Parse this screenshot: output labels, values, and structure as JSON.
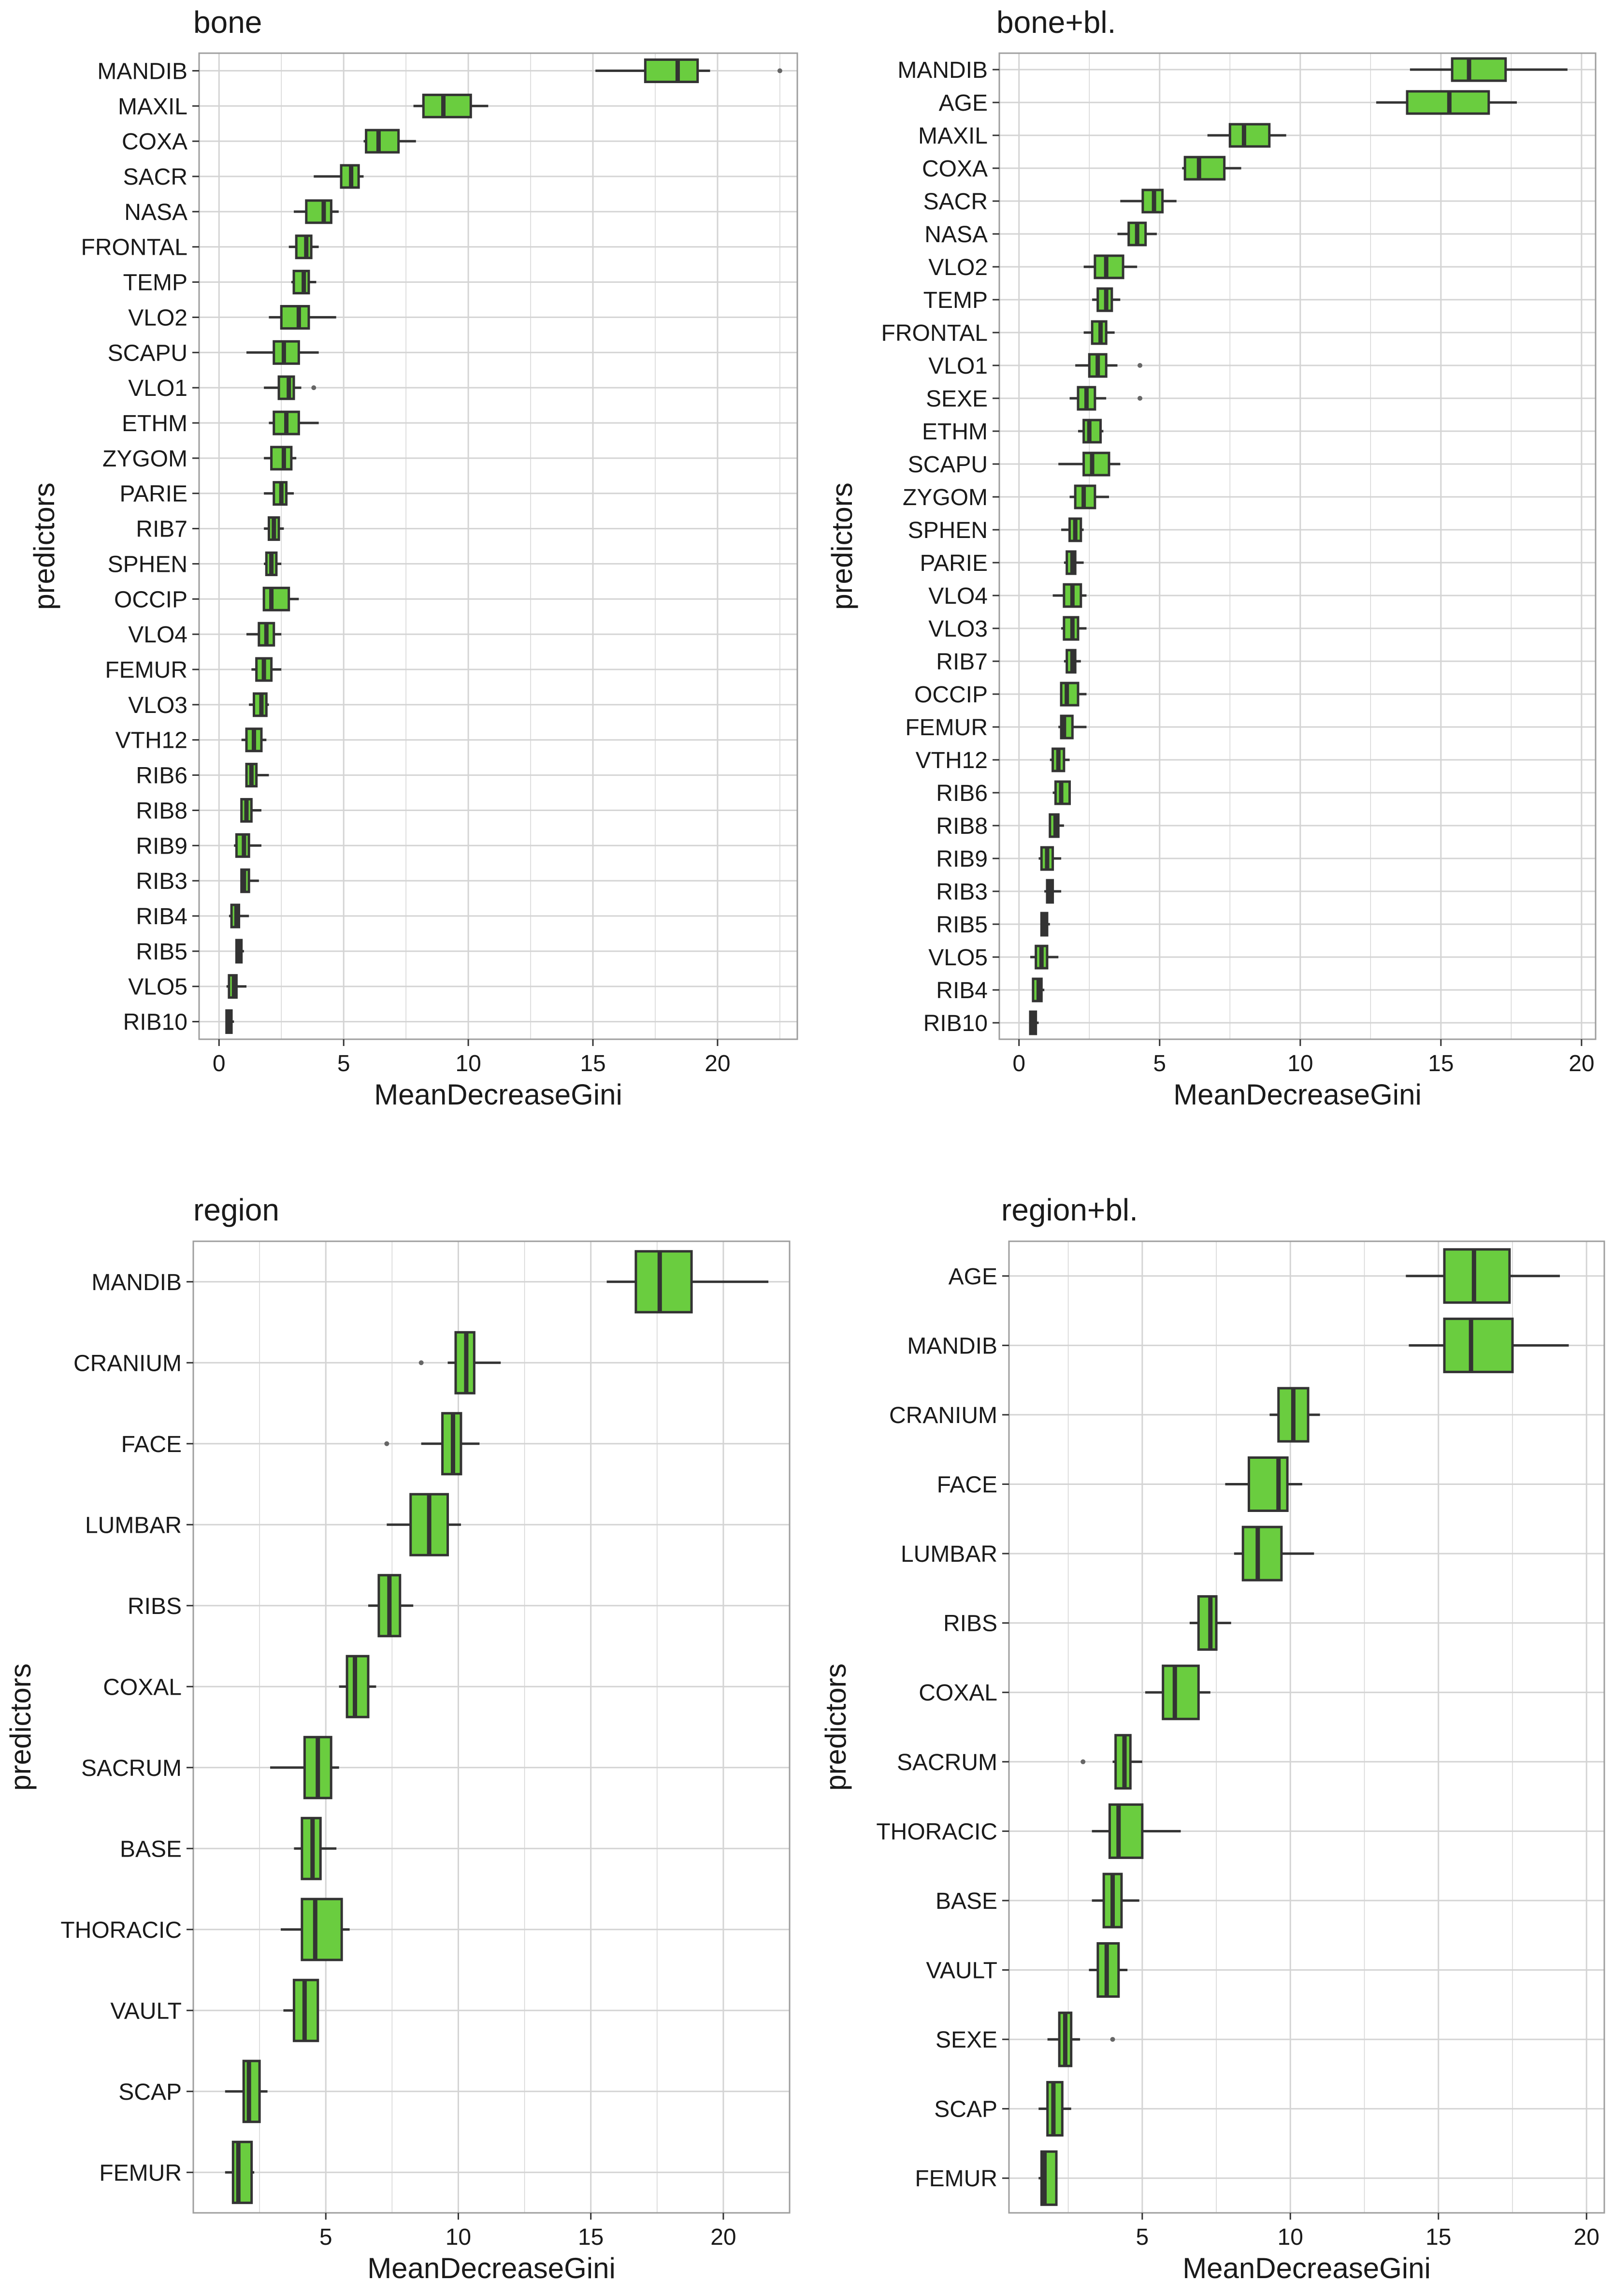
{
  "figure": {
    "colors": {
      "box_fill": "#6acd3f",
      "box_stroke": "#333333",
      "grid": "#d4d4d4",
      "panel_border": "#9e9e9e",
      "text": "#1a1a1a"
    }
  },
  "chart_data": [
    {
      "type": "boxplot",
      "title": "bone",
      "xlabel": "MeanDecreaseGini",
      "ylabel": "predictors",
      "xlim": [
        -0.8,
        23.2
      ],
      "xticks": [
        0,
        5,
        10,
        15,
        20
      ],
      "grid": true,
      "categories": [
        "MANDIB",
        "MAXIL",
        "COXA",
        "SACR",
        "NASA",
        "FRONTAL",
        "TEMP",
        "VLO2",
        "SCAPU",
        "VLO1",
        "ETHM",
        "ZYGOM",
        "PARIE",
        "RIB7",
        "SPHEN",
        "OCCIP",
        "VLO4",
        "FEMUR",
        "VLO3",
        "VTH12",
        "RIB6",
        "RIB8",
        "RIB9",
        "RIB3",
        "RIB4",
        "RIB5",
        "VLO5",
        "RIB10"
      ],
      "boxes": [
        {
          "min": 15.1,
          "q1": 17.1,
          "median": 18.4,
          "q3": 19.2,
          "max": 19.7,
          "outliers": [
            22.5
          ]
        },
        {
          "min": 7.8,
          "q1": 8.2,
          "median": 9.0,
          "q3": 10.1,
          "max": 10.8,
          "outliers": []
        },
        {
          "min": 5.8,
          "q1": 5.9,
          "median": 6.4,
          "q3": 7.2,
          "max": 7.9,
          "outliers": []
        },
        {
          "min": 3.8,
          "q1": 4.9,
          "median": 5.3,
          "q3": 5.6,
          "max": 5.8,
          "outliers": []
        },
        {
          "min": 3.0,
          "q1": 3.5,
          "median": 4.2,
          "q3": 4.5,
          "max": 4.8,
          "outliers": []
        },
        {
          "min": 2.8,
          "q1": 3.1,
          "median": 3.5,
          "q3": 3.7,
          "max": 4.0,
          "outliers": []
        },
        {
          "min": 2.9,
          "q1": 3.0,
          "median": 3.4,
          "q3": 3.6,
          "max": 3.9,
          "outliers": []
        },
        {
          "min": 2.0,
          "q1": 2.5,
          "median": 3.2,
          "q3": 3.6,
          "max": 4.7,
          "outliers": []
        },
        {
          "min": 1.1,
          "q1": 2.2,
          "median": 2.6,
          "q3": 3.2,
          "max": 4.0,
          "outliers": []
        },
        {
          "min": 1.8,
          "q1": 2.4,
          "median": 2.8,
          "q3": 3.0,
          "max": 3.3,
          "outliers": [
            3.8
          ]
        },
        {
          "min": 2.0,
          "q1": 2.2,
          "median": 2.7,
          "q3": 3.2,
          "max": 4.0,
          "outliers": []
        },
        {
          "min": 1.8,
          "q1": 2.1,
          "median": 2.6,
          "q3": 2.9,
          "max": 3.1,
          "outliers": []
        },
        {
          "min": 1.8,
          "q1": 2.2,
          "median": 2.5,
          "q3": 2.7,
          "max": 3.0,
          "outliers": []
        },
        {
          "min": 1.8,
          "q1": 2.0,
          "median": 2.2,
          "q3": 2.4,
          "max": 2.6,
          "outliers": []
        },
        {
          "min": 1.8,
          "q1": 1.9,
          "median": 2.1,
          "q3": 2.3,
          "max": 2.5,
          "outliers": []
        },
        {
          "min": 1.8,
          "q1": 1.8,
          "median": 2.1,
          "q3": 2.8,
          "max": 3.2,
          "outliers": []
        },
        {
          "min": 1.1,
          "q1": 1.6,
          "median": 1.9,
          "q3": 2.2,
          "max": 2.5,
          "outliers": []
        },
        {
          "min": 1.3,
          "q1": 1.5,
          "median": 1.8,
          "q3": 2.1,
          "max": 2.5,
          "outliers": []
        },
        {
          "min": 1.2,
          "q1": 1.4,
          "median": 1.7,
          "q3": 1.9,
          "max": 2.0,
          "outliers": []
        },
        {
          "min": 0.9,
          "q1": 1.1,
          "median": 1.4,
          "q3": 1.7,
          "max": 1.9,
          "outliers": []
        },
        {
          "min": 1.1,
          "q1": 1.1,
          "median": 1.3,
          "q3": 1.5,
          "max": 2.0,
          "outliers": []
        },
        {
          "min": 0.9,
          "q1": 0.9,
          "median": 1.1,
          "q3": 1.3,
          "max": 1.7,
          "outliers": []
        },
        {
          "min": 0.6,
          "q1": 0.7,
          "median": 1.0,
          "q3": 1.2,
          "max": 1.7,
          "outliers": []
        },
        {
          "min": 0.9,
          "q1": 0.9,
          "median": 1.0,
          "q3": 1.2,
          "max": 1.6,
          "outliers": []
        },
        {
          "min": 0.4,
          "q1": 0.5,
          "median": 0.7,
          "q3": 0.8,
          "max": 1.2,
          "outliers": []
        },
        {
          "min": 0.7,
          "q1": 0.7,
          "median": 0.8,
          "q3": 0.9,
          "max": 1.0,
          "outliers": []
        },
        {
          "min": 0.3,
          "q1": 0.4,
          "median": 0.6,
          "q3": 0.7,
          "max": 1.1,
          "outliers": []
        },
        {
          "min": 0.3,
          "q1": 0.3,
          "median": 0.4,
          "q3": 0.5,
          "max": 0.6,
          "outliers": []
        }
      ]
    },
    {
      "type": "boxplot",
      "title": "bone+bl.",
      "xlabel": "MeanDecreaseGini",
      "ylabel": "predictors",
      "xlim": [
        -0.7,
        20.5
      ],
      "xticks": [
        0,
        5,
        10,
        15,
        20
      ],
      "grid": true,
      "categories": [
        "MANDIB",
        "AGE",
        "MAXIL",
        "COXA",
        "SACR",
        "NASA",
        "VLO2",
        "TEMP",
        "FRONTAL",
        "VLO1",
        "SEXE",
        "ETHM",
        "SCAPU",
        "ZYGOM",
        "SPHEN",
        "PARIE",
        "VLO4",
        "VLO3",
        "RIB7",
        "OCCIP",
        "FEMUR",
        "VTH12",
        "RIB6",
        "RIB8",
        "RIB9",
        "RIB3",
        "RIB5",
        "VLO5",
        "RIB4",
        "RIB10"
      ],
      "boxes": [
        {
          "min": 13.9,
          "q1": 15.4,
          "median": 16.0,
          "q3": 17.3,
          "max": 19.5,
          "outliers": []
        },
        {
          "min": 12.7,
          "q1": 13.8,
          "median": 15.3,
          "q3": 16.7,
          "max": 17.7,
          "outliers": []
        },
        {
          "min": 6.7,
          "q1": 7.5,
          "median": 8.0,
          "q3": 8.9,
          "max": 9.5,
          "outliers": []
        },
        {
          "min": 5.8,
          "q1": 5.9,
          "median": 6.4,
          "q3": 7.3,
          "max": 7.9,
          "outliers": []
        },
        {
          "min": 3.6,
          "q1": 4.4,
          "median": 4.8,
          "q3": 5.1,
          "max": 5.6,
          "outliers": []
        },
        {
          "min": 3.5,
          "q1": 3.9,
          "median": 4.2,
          "q3": 4.5,
          "max": 4.9,
          "outliers": []
        },
        {
          "min": 2.3,
          "q1": 2.7,
          "median": 3.1,
          "q3": 3.7,
          "max": 4.2,
          "outliers": []
        },
        {
          "min": 2.6,
          "q1": 2.8,
          "median": 3.1,
          "q3": 3.3,
          "max": 3.6,
          "outliers": []
        },
        {
          "min": 2.3,
          "q1": 2.6,
          "median": 2.9,
          "q3": 3.1,
          "max": 3.4,
          "outliers": []
        },
        {
          "min": 2.0,
          "q1": 2.5,
          "median": 2.8,
          "q3": 3.1,
          "max": 3.5,
          "outliers": [
            4.3
          ]
        },
        {
          "min": 1.8,
          "q1": 2.1,
          "median": 2.4,
          "q3": 2.7,
          "max": 3.1,
          "outliers": [
            4.3
          ]
        },
        {
          "min": 2.1,
          "q1": 2.3,
          "median": 2.5,
          "q3": 2.9,
          "max": 3.0,
          "outliers": []
        },
        {
          "min": 1.4,
          "q1": 2.3,
          "median": 2.6,
          "q3": 3.2,
          "max": 3.6,
          "outliers": []
        },
        {
          "min": 1.8,
          "q1": 2.0,
          "median": 2.3,
          "q3": 2.7,
          "max": 3.2,
          "outliers": []
        },
        {
          "min": 1.5,
          "q1": 1.8,
          "median": 2.0,
          "q3": 2.2,
          "max": 2.3,
          "outliers": []
        },
        {
          "min": 1.6,
          "q1": 1.7,
          "median": 1.9,
          "q3": 2.0,
          "max": 2.3,
          "outliers": []
        },
        {
          "min": 1.2,
          "q1": 1.6,
          "median": 1.9,
          "q3": 2.2,
          "max": 2.4,
          "outliers": []
        },
        {
          "min": 1.5,
          "q1": 1.6,
          "median": 1.9,
          "q3": 2.1,
          "max": 2.4,
          "outliers": []
        },
        {
          "min": 1.6,
          "q1": 1.7,
          "median": 1.9,
          "q3": 2.0,
          "max": 2.2,
          "outliers": []
        },
        {
          "min": 1.5,
          "q1": 1.5,
          "median": 1.7,
          "q3": 2.1,
          "max": 2.4,
          "outliers": []
        },
        {
          "min": 1.4,
          "q1": 1.5,
          "median": 1.6,
          "q3": 1.9,
          "max": 2.4,
          "outliers": []
        },
        {
          "min": 1.1,
          "q1": 1.2,
          "median": 1.4,
          "q3": 1.6,
          "max": 1.8,
          "outliers": []
        },
        {
          "min": 1.2,
          "q1": 1.3,
          "median": 1.5,
          "q3": 1.8,
          "max": 1.8,
          "outliers": []
        },
        {
          "min": 1.1,
          "q1": 1.1,
          "median": 1.3,
          "q3": 1.4,
          "max": 1.6,
          "outliers": []
        },
        {
          "min": 0.7,
          "q1": 0.8,
          "median": 1.0,
          "q3": 1.2,
          "max": 1.5,
          "outliers": []
        },
        {
          "min": 0.9,
          "q1": 1.0,
          "median": 1.1,
          "q3": 1.2,
          "max": 1.5,
          "outliers": []
        },
        {
          "min": 0.8,
          "q1": 0.8,
          "median": 0.9,
          "q3": 1.0,
          "max": 1.1,
          "outliers": []
        },
        {
          "min": 0.4,
          "q1": 0.6,
          "median": 0.8,
          "q3": 1.0,
          "max": 1.4,
          "outliers": []
        },
        {
          "min": 0.5,
          "q1": 0.5,
          "median": 0.7,
          "q3": 0.8,
          "max": 0.9,
          "outliers": []
        },
        {
          "min": 0.4,
          "q1": 0.4,
          "median": 0.5,
          "q3": 0.6,
          "max": 0.7,
          "outliers": []
        }
      ]
    },
    {
      "type": "boxplot",
      "title": "region",
      "xlabel": "MeanDecreaseGini",
      "ylabel": "predictors",
      "xlim": [
        0.0,
        22.5
      ],
      "xticks": [
        5,
        10,
        15,
        20
      ],
      "grid": true,
      "categories": [
        "MANDIB",
        "CRANIUM",
        "FACE",
        "LUMBAR",
        "RIBS",
        "COXAL",
        "SACRUM",
        "BASE",
        "THORACIC",
        "VAULT",
        "SCAP",
        "FEMUR"
      ],
      "boxes": [
        {
          "min": 15.6,
          "q1": 16.7,
          "median": 17.6,
          "q3": 18.8,
          "max": 21.7,
          "outliers": []
        },
        {
          "min": 9.6,
          "q1": 9.9,
          "median": 10.3,
          "q3": 10.6,
          "max": 11.6,
          "outliers": [
            8.6
          ]
        },
        {
          "min": 8.6,
          "q1": 9.4,
          "median": 9.8,
          "q3": 10.1,
          "max": 10.8,
          "outliers": [
            7.3
          ]
        },
        {
          "min": 7.3,
          "q1": 8.2,
          "median": 8.9,
          "q3": 9.6,
          "max": 10.1,
          "outliers": []
        },
        {
          "min": 6.6,
          "q1": 7.0,
          "median": 7.4,
          "q3": 7.8,
          "max": 8.3,
          "outliers": []
        },
        {
          "min": 5.5,
          "q1": 5.8,
          "median": 6.1,
          "q3": 6.6,
          "max": 6.9,
          "outliers": []
        },
        {
          "min": 2.9,
          "q1": 4.2,
          "median": 4.7,
          "q3": 5.2,
          "max": 5.5,
          "outliers": []
        },
        {
          "min": 3.8,
          "q1": 4.1,
          "median": 4.5,
          "q3": 4.8,
          "max": 5.4,
          "outliers": []
        },
        {
          "min": 3.3,
          "q1": 4.1,
          "median": 4.6,
          "q3": 5.6,
          "max": 5.9,
          "outliers": []
        },
        {
          "min": 3.4,
          "q1": 3.8,
          "median": 4.2,
          "q3": 4.7,
          "max": 4.7,
          "outliers": []
        },
        {
          "min": 1.2,
          "q1": 1.9,
          "median": 2.1,
          "q3": 2.5,
          "max": 2.8,
          "outliers": []
        },
        {
          "min": 1.2,
          "q1": 1.5,
          "median": 1.7,
          "q3": 2.2,
          "max": 2.3,
          "outliers": []
        }
      ]
    },
    {
      "type": "boxplot",
      "title": "region+bl.",
      "xlabel": "MeanDecreaseGini",
      "ylabel": "predictors",
      "xlim": [
        0.5,
        20.6
      ],
      "xticks": [
        5,
        10,
        15,
        20
      ],
      "grid": true,
      "categories": [
        "AGE",
        "MANDIB",
        "CRANIUM",
        "FACE",
        "LUMBAR",
        "RIBS",
        "COXAL",
        "SACRUM",
        "THORACIC",
        "BASE",
        "VAULT",
        "SEXE",
        "SCAP",
        "FEMUR"
      ],
      "boxes": [
        {
          "min": 13.9,
          "q1": 15.2,
          "median": 16.2,
          "q3": 17.4,
          "max": 19.1,
          "outliers": []
        },
        {
          "min": 14.0,
          "q1": 15.2,
          "median": 16.1,
          "q3": 17.5,
          "max": 19.4,
          "outliers": []
        },
        {
          "min": 9.3,
          "q1": 9.6,
          "median": 10.1,
          "q3": 10.6,
          "max": 11.0,
          "outliers": []
        },
        {
          "min": 7.8,
          "q1": 8.6,
          "median": 9.6,
          "q3": 9.9,
          "max": 10.4,
          "outliers": []
        },
        {
          "min": 8.1,
          "q1": 8.4,
          "median": 8.9,
          "q3": 9.7,
          "max": 10.8,
          "outliers": []
        },
        {
          "min": 6.6,
          "q1": 6.9,
          "median": 7.3,
          "q3": 7.5,
          "max": 8.0,
          "outliers": []
        },
        {
          "min": 5.1,
          "q1": 5.7,
          "median": 6.1,
          "q3": 6.9,
          "max": 7.3,
          "outliers": []
        },
        {
          "min": 4.0,
          "q1": 4.1,
          "median": 4.4,
          "q3": 4.6,
          "max": 5.0,
          "outliers": [
            3.0
          ]
        },
        {
          "min": 3.3,
          "q1": 3.9,
          "median": 4.2,
          "q3": 5.0,
          "max": 6.3,
          "outliers": []
        },
        {
          "min": 3.3,
          "q1": 3.7,
          "median": 4.0,
          "q3": 4.3,
          "max": 4.9,
          "outliers": []
        },
        {
          "min": 3.2,
          "q1": 3.5,
          "median": 3.8,
          "q3": 4.2,
          "max": 4.5,
          "outliers": []
        },
        {
          "min": 1.8,
          "q1": 2.2,
          "median": 2.4,
          "q3": 2.6,
          "max": 2.9,
          "outliers": [
            4.0
          ]
        },
        {
          "min": 1.5,
          "q1": 1.8,
          "median": 2.0,
          "q3": 2.3,
          "max": 2.6,
          "outliers": []
        },
        {
          "min": 1.5,
          "q1": 1.6,
          "median": 1.7,
          "q3": 2.1,
          "max": 2.1,
          "outliers": []
        }
      ]
    }
  ]
}
